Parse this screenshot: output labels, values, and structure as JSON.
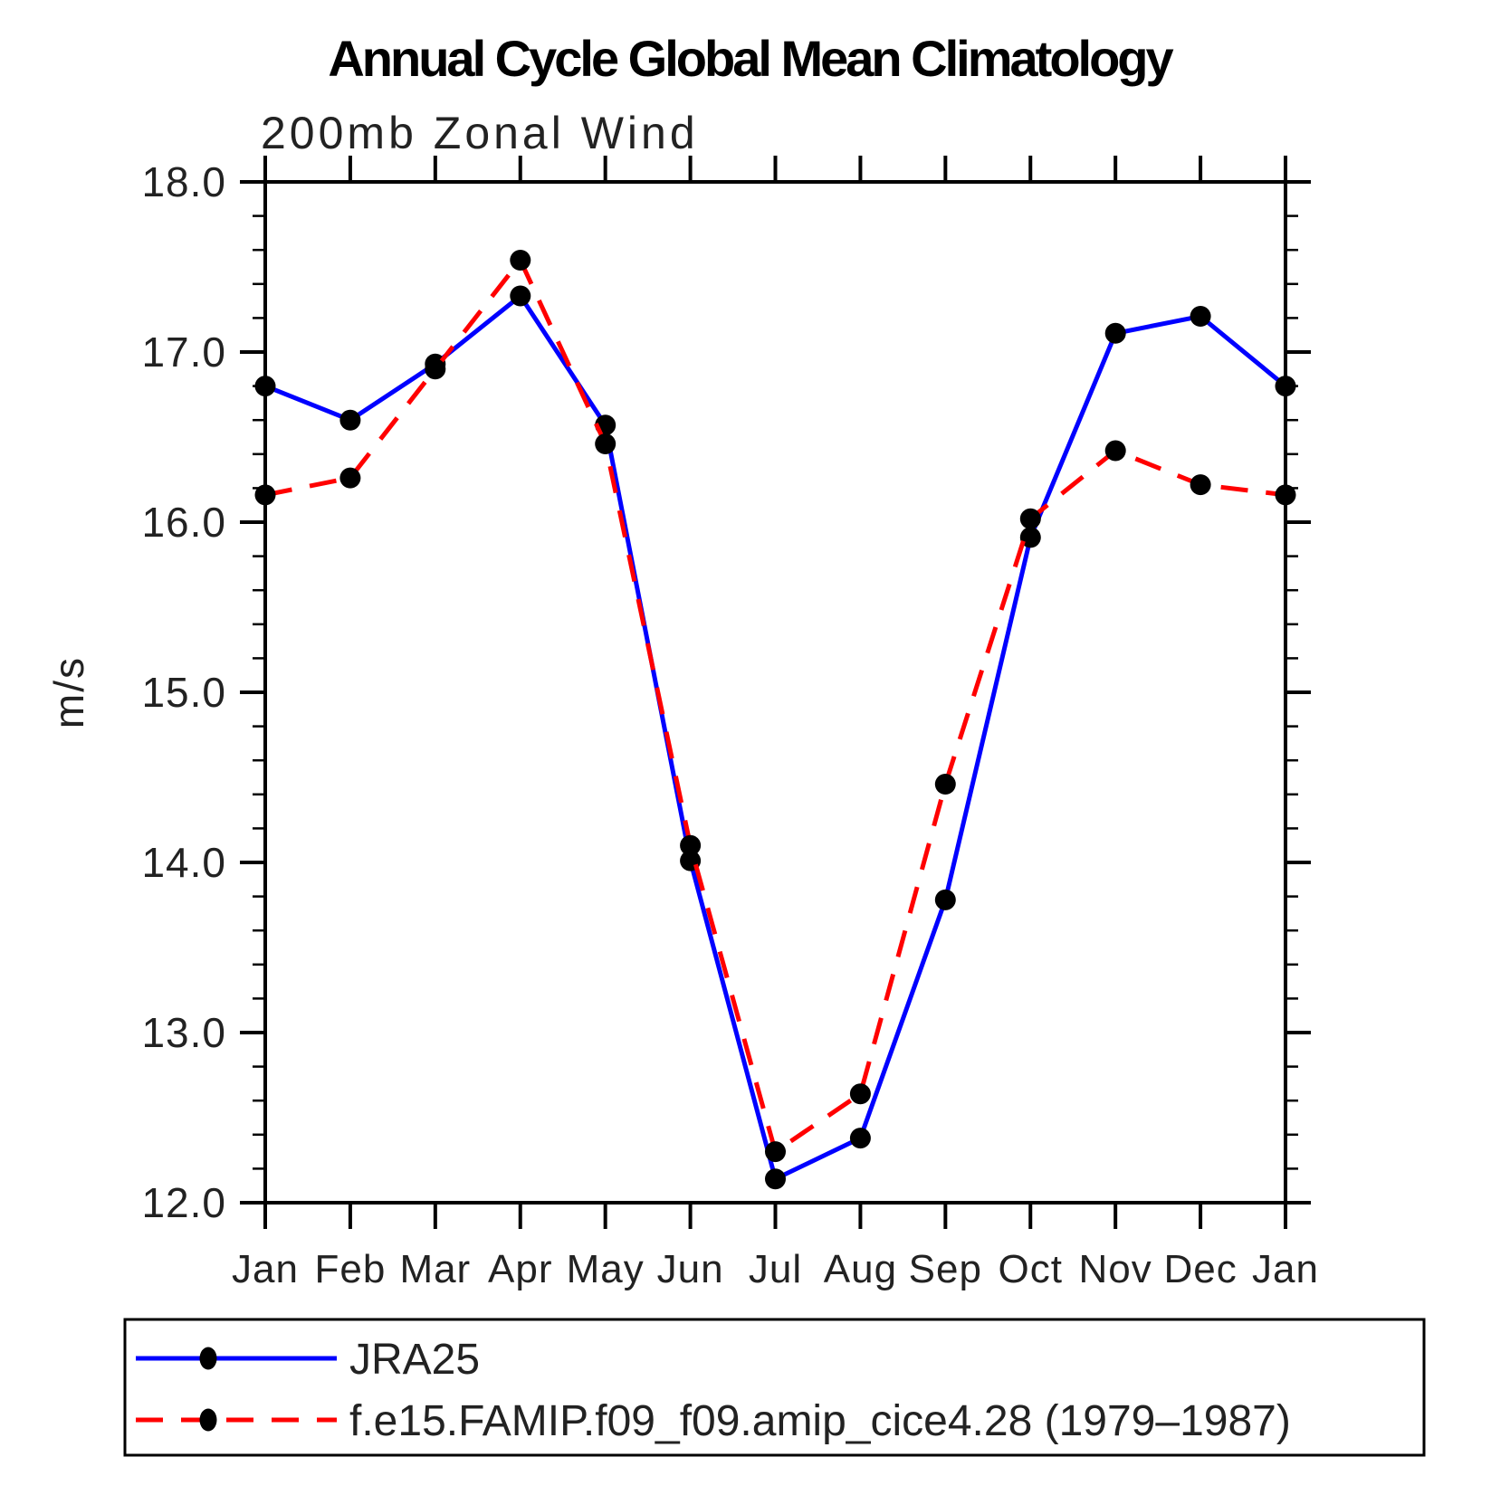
{
  "page": {
    "background": "#ffffff"
  },
  "chart_data": {
    "type": "line",
    "title": "Annual Cycle Global Mean Climatology",
    "subtitle": "200mb Zonal Wind",
    "ylabel": "m/s",
    "xlabel": "",
    "x_tick_labels": [
      "Jan",
      "Feb",
      "Mar",
      "Apr",
      "May",
      "Jun",
      "Jul",
      "Aug",
      "Sep",
      "Oct",
      "Nov",
      "Dec",
      "Jan"
    ],
    "y_tick_labels": [
      "12.0",
      "13.0",
      "14.0",
      "15.0",
      "16.0",
      "17.0",
      "18.0"
    ],
    "ylim": [
      12.0,
      18.0
    ],
    "y_major_step": 1.0,
    "y_minor_step": 0.2,
    "grid": false,
    "axis_color": "#000000",
    "marker_color": "#000000",
    "legend_position": "bottom-left-box",
    "series": [
      {
        "name": "JRA25",
        "color": "#0000ff",
        "line_style": "solid",
        "marker": "filled-circle",
        "values": [
          16.8,
          16.6,
          16.93,
          17.33,
          16.57,
          14.01,
          12.14,
          12.38,
          13.78,
          15.91,
          17.11,
          17.21,
          16.8
        ]
      },
      {
        "name": "f.e15.FAMIP.f09_f09.amip_cice4.28 (1979–1987)",
        "color": "#ff0000",
        "line_style": "dashed",
        "marker": "filled-circle",
        "values": [
          16.16,
          16.26,
          16.9,
          17.54,
          16.46,
          14.1,
          12.3,
          12.64,
          14.46,
          16.02,
          16.42,
          16.22,
          16.16
        ]
      }
    ]
  }
}
